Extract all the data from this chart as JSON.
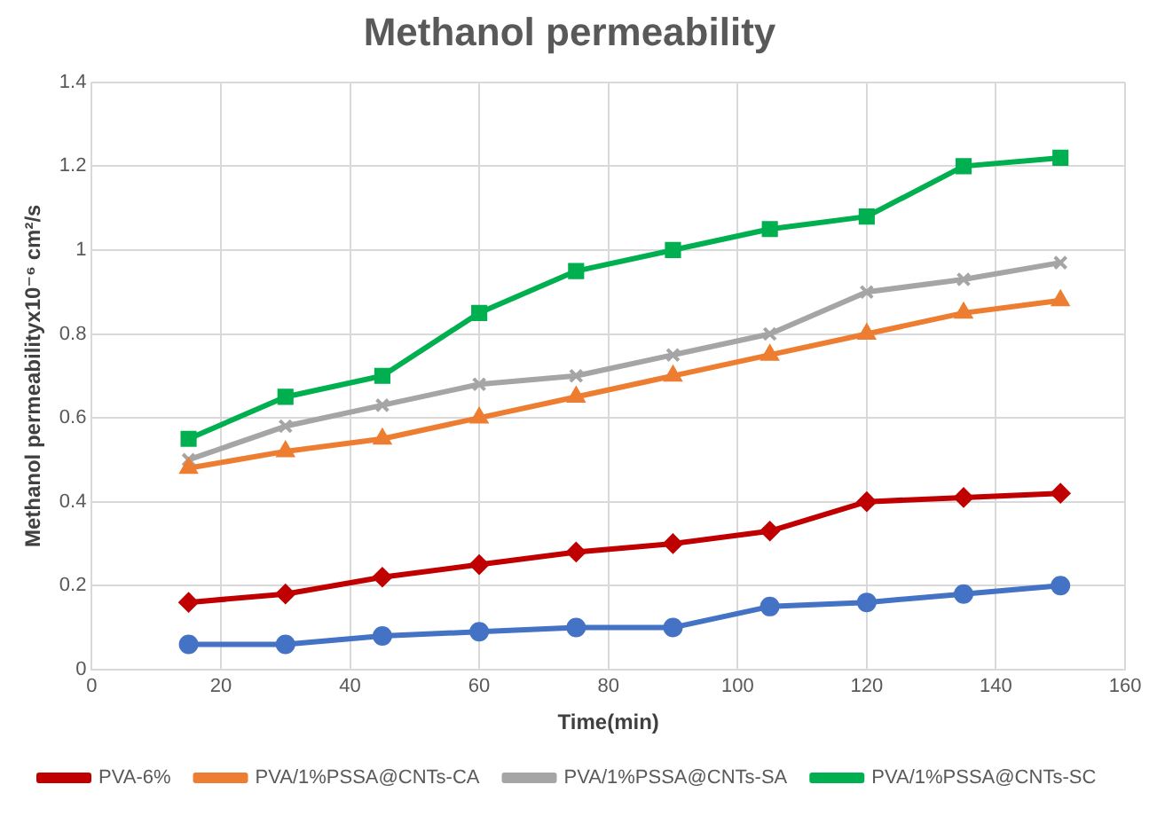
{
  "chart_data": {
    "type": "line",
    "title": "Methanol permeability",
    "xlabel": "Time(min)",
    "ylabel": "Methanol permeabilityx10⁻⁶ cm²/s",
    "x": [
      15,
      30,
      45,
      60,
      75,
      90,
      105,
      120,
      135,
      150
    ],
    "xlim": [
      0,
      160
    ],
    "xticks": [
      0,
      20,
      40,
      60,
      80,
      100,
      120,
      140,
      160
    ],
    "ylim": [
      0,
      1.4
    ],
    "yticks": [
      0,
      0.2,
      0.4,
      0.6,
      0.8,
      1,
      1.2,
      1.4
    ],
    "grid": true,
    "legend": "bottom",
    "line_style": "solid",
    "series": [
      {
        "name": "PVA-6%",
        "color": "#c00000",
        "marker": "diamond",
        "values": [
          0.16,
          0.18,
          0.22,
          0.25,
          0.28,
          0.3,
          0.33,
          0.4,
          0.41,
          0.42
        ]
      },
      {
        "name": "PVA/1%PSSA@CNTs-CA",
        "color": "#ed7d31",
        "marker": "triangle",
        "values": [
          0.48,
          0.52,
          0.55,
          0.6,
          0.65,
          0.7,
          0.75,
          0.8,
          0.85,
          0.88
        ]
      },
      {
        "name": "PVA/1%PSSA@CNTs-SA",
        "color": "#a5a5a5",
        "marker": "cross",
        "values": [
          0.5,
          0.58,
          0.63,
          0.68,
          0.7,
          0.75,
          0.8,
          0.9,
          0.93,
          0.97
        ]
      },
      {
        "name": "PVA/1%PSSA@CNTs-SC",
        "color": "#00b050",
        "marker": "square",
        "values": [
          0.55,
          0.65,
          0.7,
          0.85,
          0.95,
          1,
          1.05,
          1.08,
          1.2,
          1.22
        ]
      },
      {
        "color": "#4472c4",
        "marker": "circle",
        "values": [
          0.06,
          0.06,
          0.08,
          0.09,
          0.1,
          0.1,
          0.15,
          0.16,
          0.18,
          0.2
        ]
      }
    ]
  }
}
